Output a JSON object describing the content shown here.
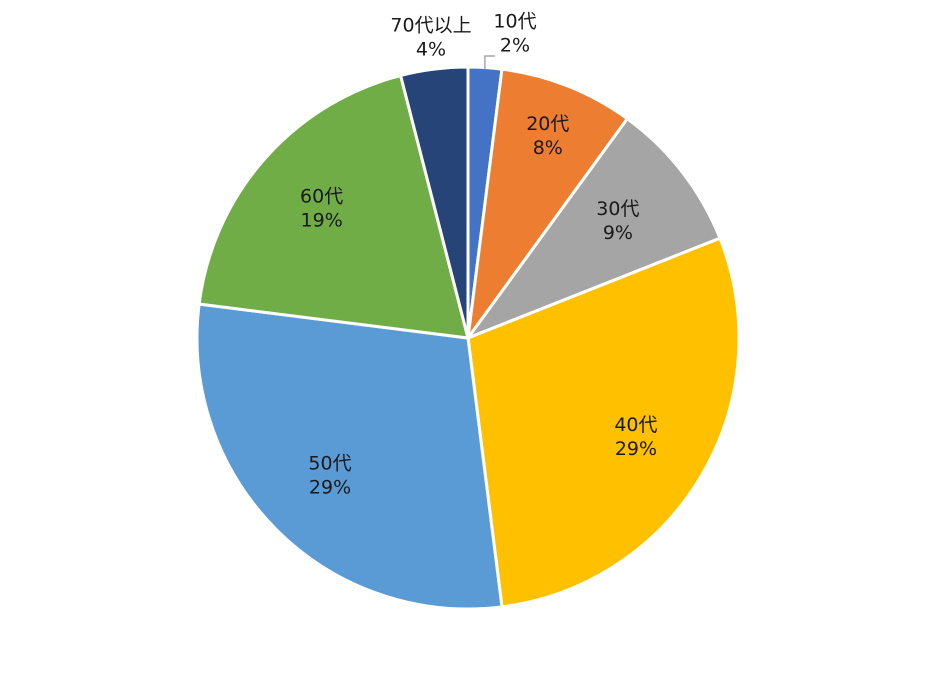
{
  "chart_data": {
    "type": "pie",
    "title": "",
    "start_angle_deg": 0,
    "direction": "clockwise",
    "slices": [
      {
        "label": "10代",
        "value": 2,
        "display": "2%",
        "color": "#4472C4"
      },
      {
        "label": "20代",
        "value": 8,
        "display": "8%",
        "color": "#ED7D31"
      },
      {
        "label": "30代",
        "value": 9,
        "display": "9%",
        "color": "#A5A5A5"
      },
      {
        "label": "40代",
        "value": 29,
        "display": "29%",
        "color": "#FFC000"
      },
      {
        "label": "50代",
        "value": 29,
        "display": "29%",
        "color": "#5B9BD5"
      },
      {
        "label": "60代",
        "value": 19,
        "display": "19%",
        "color": "#70AD47"
      },
      {
        "label": "70代以上",
        "value": 4,
        "display": "4%",
        "color": "#264478"
      }
    ]
  }
}
